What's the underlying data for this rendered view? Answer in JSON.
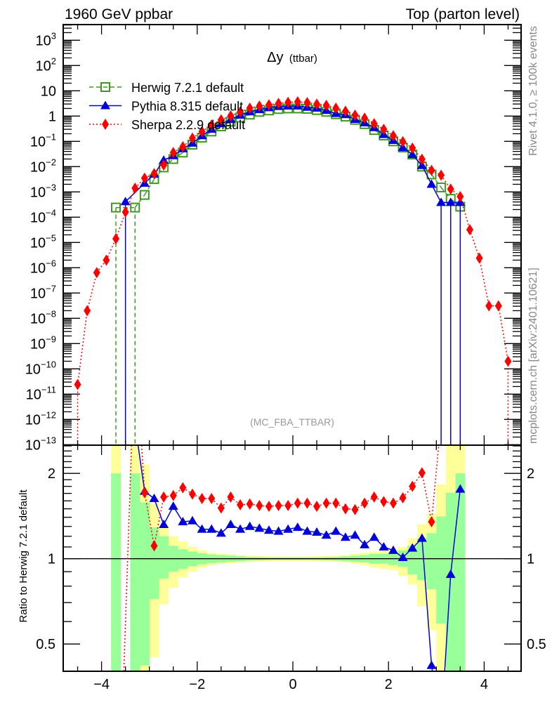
{
  "header": {
    "left": "1960 GeV ppbar",
    "right": "Top (parton level)"
  },
  "side_labels": {
    "rivet": "Rivet 4.1.0, ≥ 100k events",
    "mcplots": "mcplots.cern.ch [arXiv:2401.10621]"
  },
  "chart_data": {
    "type": "line",
    "title_main": "Δy",
    "title_sub": "(ttbar)",
    "analysis_label": "(MC_FBA_TTBAR)",
    "xlabel": "",
    "ylabel": "",
    "ratio_ylabel": "Ratio to Herwig 7.2.1 default",
    "xlim": [
      -4.8,
      4.8
    ],
    "ylim": [
      1e-13,
      4200
    ],
    "yscale": "log",
    "ratio_ylim": [
      0.4,
      2.52
    ],
    "ratio_yscale": "log",
    "legend_position": "top-left",
    "x_tick_labels": [
      {
        "value": -4,
        "label": "−4"
      },
      {
        "value": -2,
        "label": "−2"
      },
      {
        "value": 0,
        "label": "0"
      },
      {
        "value": 2,
        "label": "2"
      },
      {
        "value": 4,
        "label": "4"
      }
    ],
    "y_tick_labels": [
      {
        "exp10": 3,
        "base": "10",
        "sup": "3"
      },
      {
        "exp10": 2,
        "base": "10",
        "sup": "2"
      },
      {
        "exp10": 1,
        "base": "10",
        "sup": ""
      },
      {
        "exp10": 0,
        "base": "1",
        "sup": ""
      },
      {
        "exp10": -1,
        "base": "10",
        "sup": "−1"
      },
      {
        "exp10": -2,
        "base": "10",
        "sup": "−2"
      },
      {
        "exp10": -3,
        "base": "10",
        "sup": "−3"
      },
      {
        "exp10": -4,
        "base": "10",
        "sup": "−4"
      },
      {
        "exp10": -5,
        "base": "10",
        "sup": "−5"
      },
      {
        "exp10": -6,
        "base": "10",
        "sup": "−6"
      },
      {
        "exp10": -7,
        "base": "10",
        "sup": "−7"
      },
      {
        "exp10": -8,
        "base": "10",
        "sup": "−8"
      },
      {
        "exp10": -9,
        "base": "10",
        "sup": "−9"
      },
      {
        "exp10": -10,
        "base": "10",
        "sup": "−10"
      },
      {
        "exp10": -11,
        "base": "10",
        "sup": "−11"
      },
      {
        "exp10": -12,
        "base": "10",
        "sup": "−12"
      },
      {
        "exp10": -13,
        "base": "10",
        "sup": "−13"
      }
    ],
    "ratio_tick_labels": [
      {
        "value": 2,
        "label": "2"
      },
      {
        "value": 1,
        "label": "1"
      },
      {
        "value": 0.5,
        "label": "0.5"
      }
    ],
    "x": [
      -4.5,
      -4.3,
      -4.1,
      -3.9,
      -3.7,
      -3.5,
      -3.3,
      -3.1,
      -2.9,
      -2.7,
      -2.5,
      -2.3,
      -2.1,
      -1.9,
      -1.7,
      -1.5,
      -1.3,
      -1.1,
      -0.9,
      -0.7,
      -0.5,
      -0.3,
      -0.1,
      0.1,
      0.3,
      0.5,
      0.7,
      0.9,
      1.1,
      1.3,
      1.5,
      1.7,
      1.9,
      2.1,
      2.3,
      2.5,
      2.7,
      2.9,
      3.1,
      3.3,
      3.5,
      3.7,
      3.9,
      4.1,
      4.3,
      4.5
    ],
    "bin_width": 0.2,
    "series": [
      {
        "name": "Herwig 7.2.1 default",
        "key": "herwig",
        "color": "#3d9a1f",
        "marker": "open-square",
        "linestyle": "dashed",
        "values": [
          null,
          null,
          null,
          null,
          0.00024,
          null,
          0.00024,
          0.00076,
          0.0032,
          0.0093,
          0.02,
          0.036,
          0.074,
          0.14,
          0.245,
          0.39,
          0.6,
          0.88,
          1.14,
          1.47,
          1.67,
          1.9,
          2.0,
          2.0,
          1.93,
          1.73,
          1.47,
          1.18,
          0.95,
          0.71,
          0.48,
          0.28,
          0.17,
          0.1,
          0.057,
          0.03,
          0.01,
          0.0049,
          0.0015,
          0.00053,
          0.00026,
          null,
          null,
          null,
          null,
          null
        ],
        "error_to_zero_x": [
          -3.7,
          -3.3
        ],
        "ratio": [
          null,
          null,
          null,
          null,
          1,
          null,
          1,
          1,
          1,
          1,
          1,
          1,
          1,
          1,
          1,
          1,
          1,
          1,
          1,
          1,
          1,
          1,
          1,
          1,
          1,
          1,
          1,
          1,
          1,
          1,
          1,
          1,
          1,
          1,
          1,
          1,
          1,
          1,
          1,
          1,
          1,
          null,
          null,
          null,
          null,
          null
        ]
      },
      {
        "name": "Pythia 8.315 default",
        "key": "pythia",
        "color": "#0000dd",
        "marker": "filled-triangle",
        "linestyle": "solid",
        "values": [
          null,
          null,
          null,
          null,
          null,
          0.00041,
          null,
          0.0022,
          0.005,
          0.018,
          0.027,
          0.051,
          0.085,
          0.167,
          0.3,
          0.5,
          0.74,
          1.09,
          1.47,
          1.8,
          2.15,
          2.4,
          2.5,
          2.5,
          2.24,
          2.06,
          1.67,
          1.26,
          1.14,
          0.74,
          0.54,
          0.35,
          0.185,
          0.109,
          0.057,
          0.03,
          0.011,
          0.002,
          0.00038,
          0.00038,
          0.00038,
          null,
          null,
          null,
          null,
          null
        ],
        "error_to_zero_x": [
          -3.5,
          3.1,
          3.3,
          3.5
        ],
        "ratio": [
          null,
          null,
          null,
          null,
          null,
          null,
          3.0,
          1.73,
          1.63,
          1.32,
          1.53,
          1.35,
          1.36,
          1.27,
          1.27,
          1.23,
          1.32,
          1.27,
          1.3,
          1.28,
          1.26,
          1.25,
          1.27,
          1.29,
          1.25,
          1.24,
          1.21,
          1.25,
          1.19,
          1.21,
          1.12,
          1.19,
          1.1,
          1.07,
          1.01,
          1.09,
          1.18,
          0.42,
          0.25,
          0.88,
          1.76,
          null,
          null,
          null,
          null,
          null
        ]
      },
      {
        "name": "Sherpa 2.2.9 default",
        "key": "sherpa",
        "color": "#ff0000",
        "marker": "filled-diamond",
        "linestyle": "dotted",
        "values": [
          2.4e-11,
          2e-08,
          6.4e-07,
          2e-06,
          1.4e-05,
          0.00016,
          0.0014,
          0.0035,
          0.0053,
          0.0115,
          0.036,
          0.061,
          0.134,
          0.245,
          0.44,
          0.71,
          1.02,
          1.47,
          2.06,
          2.5,
          2.8,
          3.16,
          3.5,
          3.67,
          3.4,
          2.97,
          2.66,
          2.06,
          1.56,
          1.09,
          0.83,
          0.5,
          0.3,
          0.167,
          0.097,
          0.054,
          0.0197,
          0.0071,
          0.0046,
          0.0013,
          0.00065,
          3.2e-05,
          2.4e-06,
          3.1e-08,
          3.1e-08,
          2e-10
        ],
        "error_to_zero_x": [
          -4.5,
          4.5
        ],
        "ratio": [
          null,
          null,
          null,
          null,
          0.06,
          null,
          5.8,
          1.71,
          1.11,
          1.65,
          1.67,
          1.78,
          1.69,
          1.63,
          1.63,
          1.51,
          1.65,
          1.55,
          1.56,
          1.54,
          1.53,
          1.54,
          1.54,
          1.57,
          1.57,
          1.53,
          1.57,
          1.57,
          1.5,
          1.49,
          1.57,
          1.65,
          1.59,
          1.57,
          1.64,
          1.8,
          2.01,
          1.35,
          3.1,
          2.8,
          2.6,
          null,
          null,
          null,
          null,
          null
        ]
      }
    ],
    "reference_band": {
      "reference": "Herwig 7.2.1 default",
      "inner_color": "#99ff99",
      "outer_color": "#ffff99",
      "inner": [
        null,
        null,
        null,
        null,
        [
          0.3,
          2.0
        ],
        null,
        [
          0.3,
          2.0
        ],
        [
          0.42,
          1.58
        ],
        [
          0.72,
          1.29
        ],
        [
          0.85,
          1.2
        ],
        [
          0.9,
          1.11
        ],
        [
          0.92,
          1.08
        ],
        [
          0.94,
          1.06
        ],
        [
          0.955,
          1.045
        ],
        [
          0.965,
          1.035
        ],
        [
          0.97,
          1.03
        ],
        [
          0.975,
          1.025
        ],
        [
          0.98,
          1.02
        ],
        [
          0.985,
          1.015
        ],
        [
          0.987,
          1.013
        ],
        [
          0.99,
          1.01
        ],
        [
          0.99,
          1.01
        ],
        [
          0.99,
          1.01
        ],
        [
          0.99,
          1.01
        ],
        [
          0.99,
          1.01
        ],
        [
          0.99,
          1.01
        ],
        [
          0.987,
          1.013
        ],
        [
          0.985,
          1.015
        ],
        [
          0.98,
          1.02
        ],
        [
          0.975,
          1.025
        ],
        [
          0.97,
          1.03
        ],
        [
          0.96,
          1.04
        ],
        [
          0.96,
          1.04
        ],
        [
          0.95,
          1.05
        ],
        [
          0.935,
          1.07
        ],
        [
          0.88,
          1.11
        ],
        [
          0.84,
          1.18
        ],
        [
          0.78,
          1.23
        ],
        [
          0.59,
          1.41
        ],
        [
          0.3,
          1.71
        ],
        [
          0.3,
          2.0
        ],
        null,
        null,
        null,
        null,
        null
      ],
      "outer": [
        null,
        null,
        null,
        null,
        [
          0.3,
          3.0
        ],
        null,
        [
          0.3,
          3.0
        ],
        [
          0.3,
          2.15
        ],
        [
          0.45,
          1.57
        ],
        [
          0.69,
          1.29
        ],
        [
          0.79,
          1.2
        ],
        [
          0.86,
          1.15
        ],
        [
          0.9,
          1.1
        ],
        [
          0.93,
          1.07
        ],
        [
          0.95,
          1.05
        ],
        [
          0.96,
          1.04
        ],
        [
          0.965,
          1.035
        ],
        [
          0.97,
          1.03
        ],
        [
          0.975,
          1.025
        ],
        [
          0.978,
          1.022
        ],
        [
          0.98,
          1.02
        ],
        [
          0.982,
          1.018
        ],
        [
          0.982,
          1.018
        ],
        [
          0.982,
          1.018
        ],
        [
          0.982,
          1.018
        ],
        [
          0.98,
          1.02
        ],
        [
          0.978,
          1.022
        ],
        [
          0.975,
          1.025
        ],
        [
          0.97,
          1.03
        ],
        [
          0.96,
          1.04
        ],
        [
          0.95,
          1.05
        ],
        [
          0.93,
          1.06
        ],
        [
          0.92,
          1.07
        ],
        [
          0.91,
          1.08
        ],
        [
          0.87,
          1.1
        ],
        [
          0.81,
          1.18
        ],
        [
          0.68,
          1.32
        ],
        [
          0.56,
          1.44
        ],
        [
          0.3,
          1.83
        ],
        [
          0.3,
          3.0
        ],
        [
          0.3,
          3.0
        ],
        null,
        null,
        null,
        null,
        null
      ]
    }
  }
}
